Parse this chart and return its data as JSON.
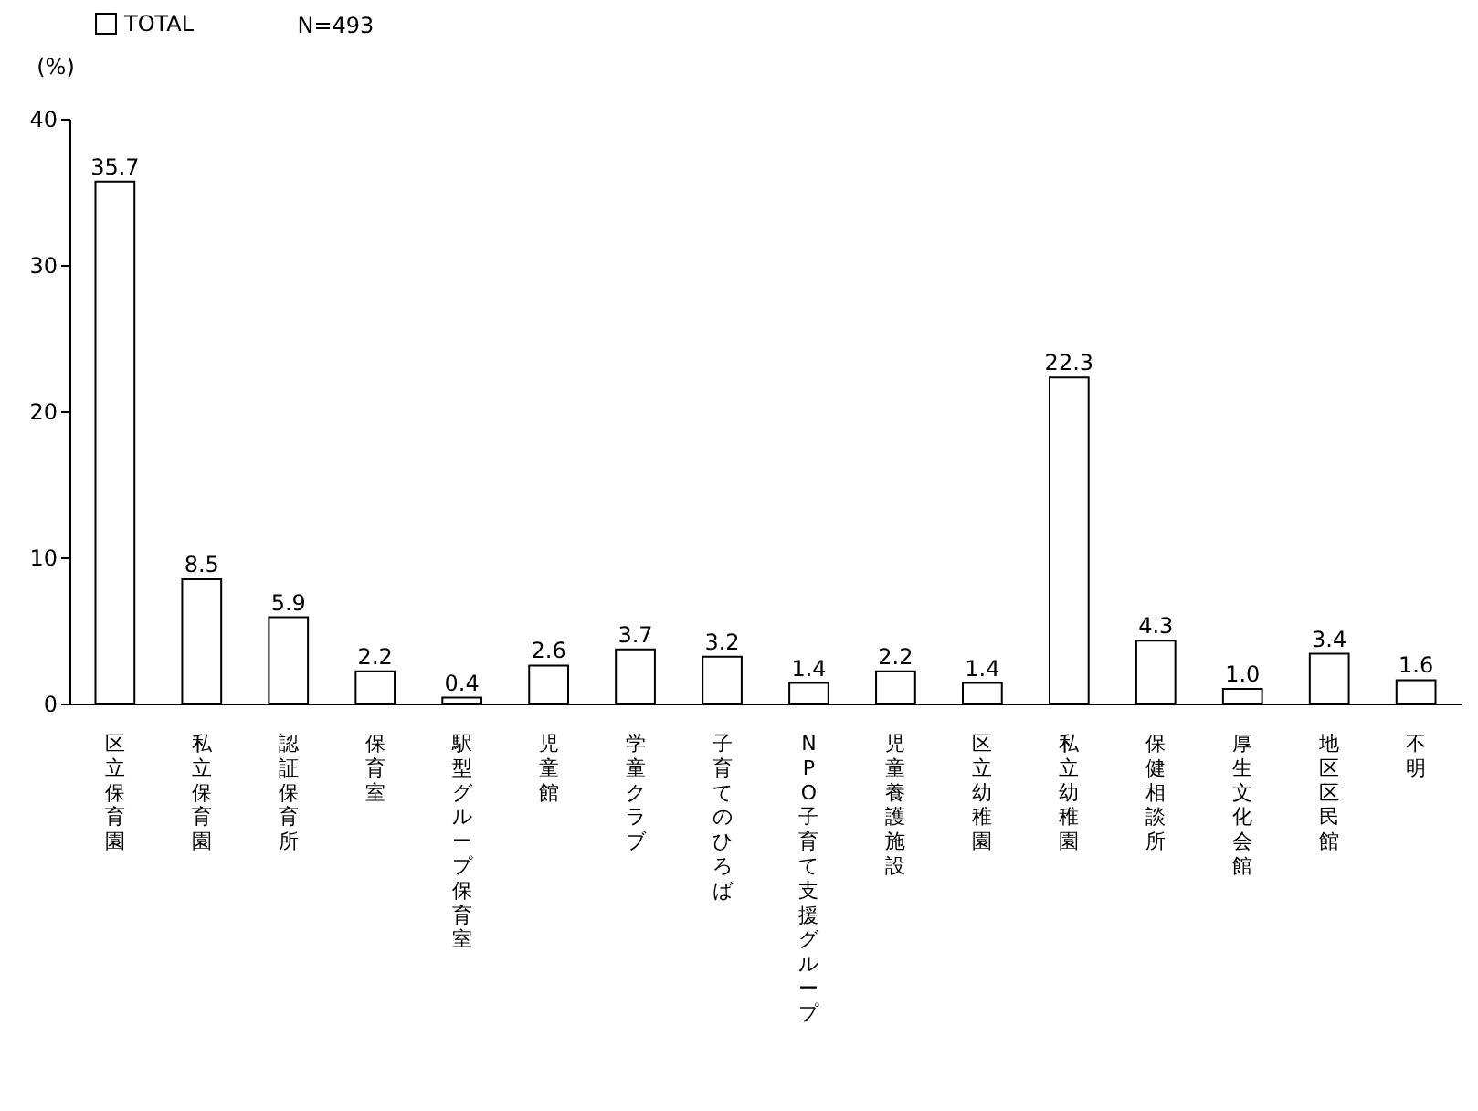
{
  "chart_data": {
    "type": "bar",
    "ylabel": "(%)",
    "annotations": [
      "N=493"
    ],
    "categories": [
      "区立保育園",
      "私立保育園",
      "認証保育所",
      "保育室",
      "駅型グループ保育室",
      "児童館",
      "学童クラブ",
      "子育てのひろば",
      "NPO子育て支援グループ",
      "児童養護施設",
      "区立幼稚園",
      "私立幼稚園",
      "保健相談所",
      "厚生文化会館",
      "地区区民館",
      "不明"
    ],
    "series": [
      {
        "name": "TOTAL",
        "color": "#ffffff",
        "values": [
          35.7,
          8.5,
          5.9,
          2.2,
          0.4,
          2.6,
          3.7,
          3.2,
          1.4,
          2.2,
          1.4,
          22.3,
          4.3,
          1.0,
          3.4,
          1.6
        ]
      }
    ],
    "value_labels": [
      "35.7",
      "8.5",
      "5.9",
      "2.2",
      "0.4",
      "2.6",
      "3.7",
      "3.2",
      "1.4",
      "2.2",
      "1.4",
      "22.3",
      "4.3",
      "1.0",
      "3.4",
      "1.6"
    ],
    "ylim": [
      0,
      40
    ],
    "yticks": [
      0,
      10,
      20,
      30,
      40
    ],
    "legend": "top left",
    "grid": false
  }
}
